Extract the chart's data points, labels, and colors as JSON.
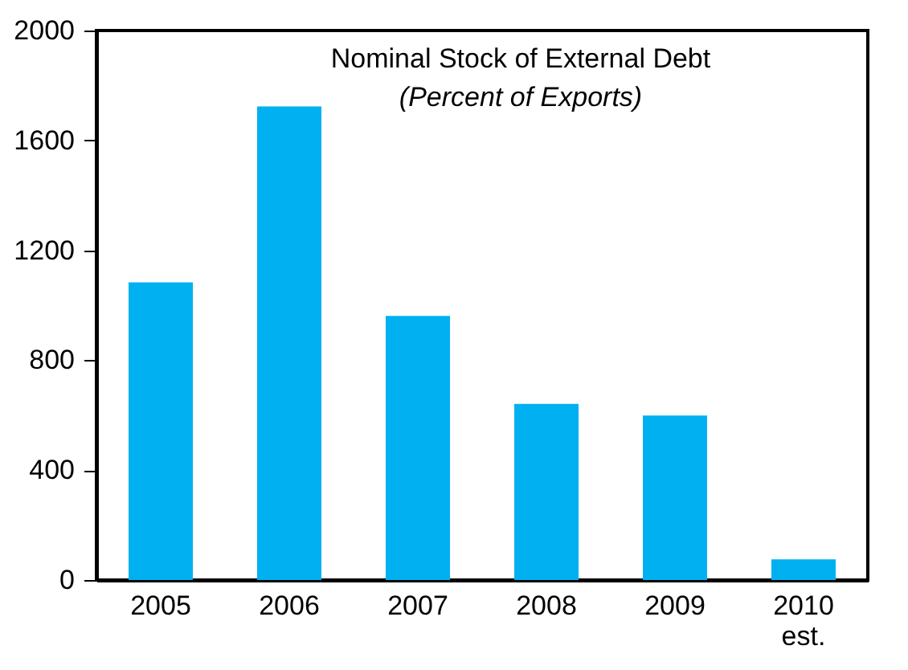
{
  "chart_data": {
    "type": "bar",
    "title": "Nominal Stock of External Debt",
    "subtitle": "(Percent of Exports)",
    "categories": [
      "2005",
      "2006",
      "2007",
      "2008",
      "2009",
      "2010\nest."
    ],
    "values": [
      1083,
      1724,
      961,
      641,
      599,
      75
    ],
    "color": "#00b0f0",
    "ylim": [
      0,
      2000
    ],
    "yticks": [
      0,
      400,
      800,
      1200,
      1600,
      2000
    ],
    "grid": false
  }
}
